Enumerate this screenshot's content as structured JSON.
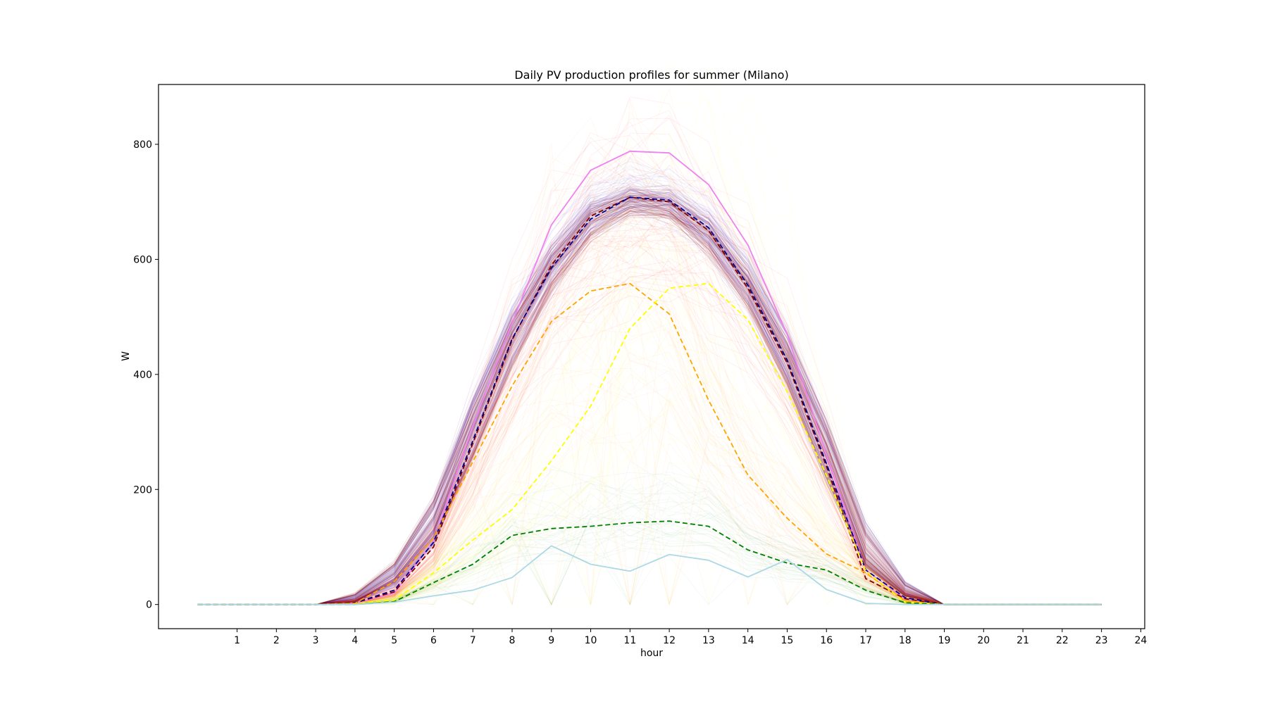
{
  "chart_data": {
    "type": "line",
    "title": "Daily PV production profiles for summer (Milano)",
    "xlabel": "hour",
    "ylabel": "W",
    "xlim": [
      -1.0,
      24.1
    ],
    "ylim": [
      -42,
      904
    ],
    "xticks": [
      1,
      2,
      3,
      4,
      5,
      6,
      7,
      8,
      9,
      10,
      11,
      12,
      13,
      14,
      15,
      16,
      17,
      18,
      19,
      20,
      21,
      22,
      23,
      24
    ],
    "yticks": [
      0,
      200,
      400,
      600,
      800
    ],
    "grid": false,
    "legend": "none",
    "x": [
      0,
      1,
      2,
      3,
      4,
      5,
      6,
      7,
      8,
      9,
      10,
      11,
      12,
      13,
      14,
      15,
      16,
      17,
      18,
      19,
      20,
      21,
      22,
      23
    ],
    "background_bands": [
      {
        "color": "#0000ff",
        "count": 40,
        "opacity": 0.05,
        "spread": 0.06,
        "base": [
          0,
          0,
          0,
          0,
          5,
          40,
          130,
          320,
          480,
          600,
          690,
          720,
          710,
          660,
          570,
          440,
          280,
          90,
          20,
          0,
          0,
          0,
          0,
          0
        ]
      },
      {
        "color": "#4b0082",
        "count": 60,
        "opacity": 0.1,
        "spread": 0.03,
        "base": [
          0,
          0,
          0,
          0,
          6,
          45,
          130,
          310,
          470,
          590,
          680,
          710,
          700,
          650,
          560,
          430,
          270,
          85,
          20,
          0,
          0,
          0,
          0,
          0
        ]
      },
      {
        "color": "#800000",
        "count": 40,
        "opacity": 0.12,
        "spread": 0.03,
        "base": [
          0,
          0,
          0,
          0,
          8,
          50,
          140,
          300,
          460,
          585,
          670,
          705,
          695,
          645,
          555,
          425,
          265,
          80,
          20,
          0,
          0,
          0,
          0,
          0
        ]
      },
      {
        "color": "#ff0000",
        "count": 60,
        "opacity": 0.06,
        "spread": 0.22,
        "base": [
          0,
          0,
          0,
          0,
          3,
          20,
          100,
          260,
          430,
          560,
          640,
          680,
          670,
          620,
          530,
          400,
          240,
          60,
          10,
          0,
          0,
          0,
          0,
          0
        ]
      },
      {
        "color": "#ff8c00",
        "count": 60,
        "opacity": 0.05,
        "spread": 0.45,
        "base": [
          0,
          0,
          0,
          0,
          2,
          15,
          70,
          210,
          370,
          490,
          545,
          560,
          500,
          340,
          225,
          150,
          90,
          50,
          5,
          0,
          0,
          0,
          0,
          0
        ]
      },
      {
        "color": "#ffff00",
        "count": 50,
        "opacity": 0.05,
        "spread": 0.5,
        "base": [
          0,
          0,
          0,
          0,
          1,
          8,
          50,
          110,
          165,
          250,
          345,
          480,
          550,
          560,
          500,
          380,
          225,
          60,
          5,
          0,
          0,
          0,
          0,
          0
        ]
      },
      {
        "color": "#008000",
        "count": 40,
        "opacity": 0.04,
        "spread": 0.5,
        "base": [
          0,
          0,
          0,
          0,
          0,
          5,
          35,
          70,
          120,
          132,
          136,
          142,
          145,
          135,
          95,
          70,
          58,
          25,
          3,
          0,
          0,
          0,
          0,
          0
        ]
      }
    ],
    "series": [
      {
        "color": "#ee82ee",
        "dash": "solid",
        "width": 1.8,
        "values": [
          0,
          0,
          0,
          0,
          2,
          20,
          110,
          310,
          490,
          660,
          755,
          788,
          785,
          730,
          625,
          470,
          260,
          60,
          10,
          0,
          0,
          0,
          0,
          0
        ]
      },
      {
        "color": "#800000",
        "dash": "dashed",
        "width": 1.8,
        "values": [
          0,
          0,
          0,
          0,
          3,
          22,
          100,
          280,
          460,
          590,
          675,
          708,
          700,
          650,
          550,
          420,
          240,
          45,
          10,
          0,
          0,
          0,
          0,
          0
        ]
      },
      {
        "color": "#00008b",
        "dash": "dashed",
        "width": 1.8,
        "values": [
          0,
          0,
          0,
          0,
          3,
          25,
          108,
          285,
          462,
          585,
          670,
          708,
          703,
          655,
          555,
          425,
          245,
          60,
          12,
          0,
          0,
          0,
          0,
          0
        ]
      },
      {
        "color": "#ffa500",
        "dash": "dashed",
        "width": 1.8,
        "values": [
          0,
          0,
          0,
          0,
          2,
          40,
          115,
          248,
          380,
          492,
          545,
          558,
          505,
          355,
          225,
          150,
          88,
          55,
          6,
          0,
          0,
          0,
          0,
          0
        ]
      },
      {
        "color": "#ffff00",
        "dash": "dashed",
        "width": 1.8,
        "values": [
          0,
          0,
          0,
          0,
          1,
          8,
          55,
          112,
          165,
          250,
          345,
          480,
          550,
          558,
          495,
          370,
          225,
          58,
          4,
          0,
          0,
          0,
          0,
          0
        ]
      },
      {
        "color": "#008000",
        "dash": "dashed",
        "width": 1.8,
        "values": [
          0,
          0,
          0,
          0,
          0,
          5,
          38,
          70,
          120,
          132,
          136,
          142,
          145,
          136,
          95,
          72,
          60,
          25,
          3,
          0,
          0,
          0,
          0,
          0
        ]
      },
      {
        "color": "#add8e6",
        "dash": "solid",
        "width": 1.8,
        "values": [
          0,
          0,
          0,
          0,
          0,
          4,
          15,
          25,
          47,
          102,
          70,
          58,
          87,
          77,
          48,
          78,
          26,
          2,
          0,
          0,
          0,
          0,
          0,
          0
        ]
      }
    ]
  }
}
